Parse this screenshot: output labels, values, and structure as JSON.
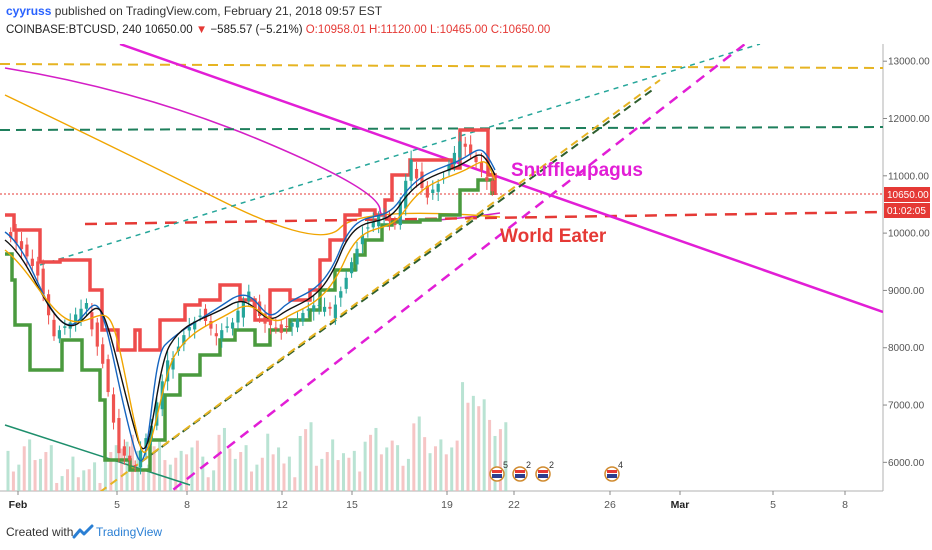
{
  "header": {
    "username": "cyyruss",
    "published_text": " published on TradingView.com, February 21, 2018 09:57 EST",
    "symbol_text": "COINBASE:BTCUSD, 240",
    "close_value": "10650.00",
    "change_text": "−585.57 (−5.21%)",
    "open_text": "O:10958.01",
    "high_text": "H:11120.00",
    "low_text": "L:10465.00",
    "close_text": "C:10650.00"
  },
  "footer": {
    "created_with": "Created with",
    "brand": "TradingView"
  },
  "colors": {
    "magenta": "#e21ed6",
    "red": "#e53935",
    "green": "#3b9a3b",
    "orange": "#f0a500",
    "teal": "#26a69a",
    "darkgreen": "#1e7f5c",
    "gold": "#e6b422",
    "blue": "#2962ff"
  },
  "chart_data": {
    "type": "candlestick",
    "symbol": "COINBASE:BTCUSD",
    "interval": "240",
    "ylim": [
      5500,
      13300
    ],
    "y_ticks": [
      "13000.00",
      "12000.00",
      "11000.00",
      "10000.00",
      "9000.00",
      "8000.00",
      "7000.00",
      "6000.00"
    ],
    "x_ticks": [
      "Feb",
      "5",
      "8",
      "12",
      "15",
      "19",
      "22",
      "26",
      "Mar",
      "5",
      "8"
    ],
    "price_labels": [
      {
        "text": "10650.00",
        "color": "#e53935"
      },
      {
        "text": "01:02:05",
        "color": "#e53935"
      }
    ],
    "annotations": [
      {
        "text": "Snuffleupagus",
        "color": "#e21ed6"
      },
      {
        "text": "World Eater",
        "color": "#e53935"
      }
    ],
    "event_badges": [
      "5",
      "2",
      "2",
      "4"
    ],
    "horizontal_levels": [
      {
        "price": 12880,
        "color": "#e6b422",
        "style": "dashed"
      },
      {
        "price": 11830,
        "color": "#1e7f5c",
        "style": "dashed"
      },
      {
        "price": 10650,
        "color": "#e53935",
        "style": "dotted"
      },
      {
        "price": 10270,
        "color": "#e53935",
        "style": "dashed"
      }
    ],
    "price_path": [
      [
        0,
        10100
      ],
      [
        1,
        9800
      ],
      [
        2,
        9300
      ],
      [
        3,
        8200
      ],
      [
        4,
        8400
      ],
      [
        5,
        8700
      ],
      [
        6,
        7800
      ],
      [
        7,
        6200
      ],
      [
        8,
        5950
      ],
      [
        9,
        6600
      ],
      [
        10,
        7700
      ],
      [
        11,
        8300
      ],
      [
        12,
        8600
      ],
      [
        13,
        8200
      ],
      [
        14,
        8400
      ],
      [
        15,
        8900
      ],
      [
        16,
        8500
      ],
      [
        17,
        8300
      ],
      [
        18,
        8500
      ],
      [
        19,
        8700
      ],
      [
        20,
        8600
      ],
      [
        21,
        9300
      ],
      [
        22,
        10000
      ],
      [
        23,
        10300
      ],
      [
        24,
        10100
      ],
      [
        25,
        11200
      ],
      [
        26,
        10700
      ],
      [
        27,
        11000
      ],
      [
        28,
        11600
      ],
      [
        29,
        11200
      ],
      [
        30,
        10650
      ]
    ],
    "volume": [
      [
        0,
        6200
      ],
      [
        1,
        6400
      ],
      [
        2,
        6300
      ],
      [
        3,
        6000
      ],
      [
        4,
        6100
      ],
      [
        5,
        6000
      ],
      [
        6,
        6300
      ],
      [
        7,
        6600
      ],
      [
        8,
        6200
      ],
      [
        9,
        6400
      ],
      [
        10,
        6200
      ],
      [
        11,
        6500
      ],
      [
        12,
        6100
      ],
      [
        13,
        6600
      ],
      [
        14,
        6300
      ],
      [
        15,
        6200
      ],
      [
        16,
        6500
      ],
      [
        17,
        6100
      ],
      [
        18,
        6700
      ],
      [
        19,
        6300
      ],
      [
        20,
        6400
      ],
      [
        21,
        6200
      ],
      [
        22,
        6600
      ],
      [
        23,
        6500
      ],
      [
        24,
        6300
      ],
      [
        25,
        6800
      ],
      [
        26,
        6400
      ],
      [
        27,
        6500
      ],
      [
        28,
        7400
      ],
      [
        29,
        7100
      ],
      [
        30,
        6700
      ]
    ]
  }
}
